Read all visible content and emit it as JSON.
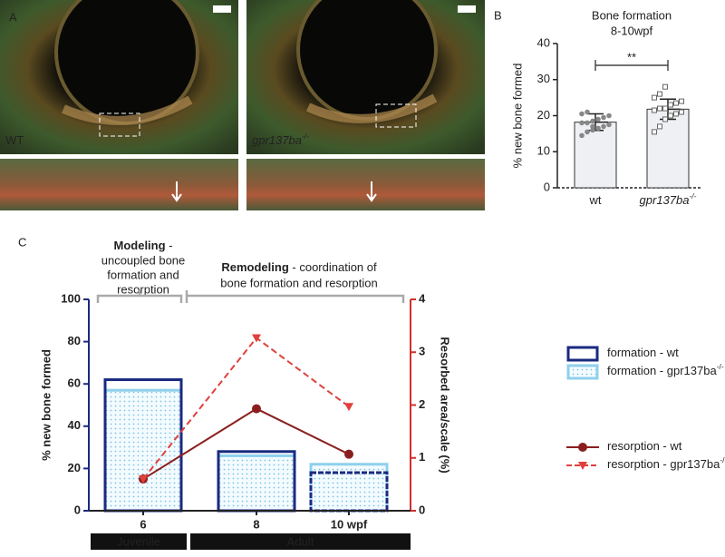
{
  "panel_labels": [
    "A",
    "B",
    "C"
  ],
  "panel_a": {
    "labels": [
      {
        "label": "WT"
      },
      {
        "label": "gpr137ba",
        "superscript": "-/-"
      }
    ]
  },
  "chart_data": [
    {
      "type": "bar",
      "title": "Bone formation",
      "subtitle": "8-10wpf",
      "y_label": "% new bone formed",
      "categories": [
        {
          "label": "wt"
        },
        {
          "label": "gpr137ba",
          "superscript": "-/-"
        }
      ],
      "values": [
        18.2,
        21.8
      ],
      "errors": [
        2.3,
        2.8
      ],
      "color": "#eef0f4",
      "points": [
        [
          14.5,
          15.5,
          16,
          16.5,
          17,
          17.5,
          18,
          18,
          18.5,
          19,
          19.5,
          20,
          20.5,
          21,
          17
        ],
        [
          15.5,
          17,
          19,
          20,
          20.5,
          21,
          21.5,
          22,
          22,
          23,
          23.5,
          24,
          25,
          26,
          28
        ]
      ],
      "significance": "**",
      "ylim": [
        0,
        40
      ],
      "yticks": [
        0,
        10,
        20,
        30,
        40
      ]
    },
    {
      "type": "combo",
      "y_label": "% new bone formed",
      "y2_label": "Resorbed area/scale (%)",
      "categories": [
        "6",
        "8",
        "10 wpf"
      ],
      "ylim": [
        0,
        100
      ],
      "yticks": [
        0,
        20,
        40,
        60,
        80,
        100
      ],
      "y2lim": [
        0,
        4
      ],
      "y2ticks": [
        0,
        1,
        2,
        3,
        4
      ],
      "series": [
        {
          "name": "formation - gpr137ba",
          "superscript": "-/-",
          "type": "bar",
          "style": "dotted",
          "color": "#8fd0ec",
          "values": [
            57,
            26,
            22
          ]
        },
        {
          "name": "formation - wt",
          "type": "bar",
          "style": "outline",
          "color": "#1a2a80",
          "values": [
            62,
            28,
            18
          ]
        },
        {
          "name": "resorption - wt",
          "type": "line",
          "axis": "y2",
          "color": "#8b1e1e",
          "values": [
            0.6,
            1.93,
            1.07
          ]
        },
        {
          "name": "resorption - gpr137ba",
          "superscript": "-/-",
          "type": "line",
          "axis": "y2",
          "dashed": true,
          "color": "#e0403c",
          "values": [
            0.6,
            3.27,
            1.97
          ]
        }
      ],
      "annotations": [
        {
          "bold": "Modeling",
          "rest": " -",
          "lines": [
            "uncoupled bone",
            "formation and",
            "resorption"
          ]
        },
        {
          "bold": "Remodeling",
          "rest": " - coordination of",
          "lines": [
            "bone formation and resorption"
          ]
        }
      ],
      "age_groups": [
        "Juvenile",
        "Adult"
      ]
    }
  ]
}
